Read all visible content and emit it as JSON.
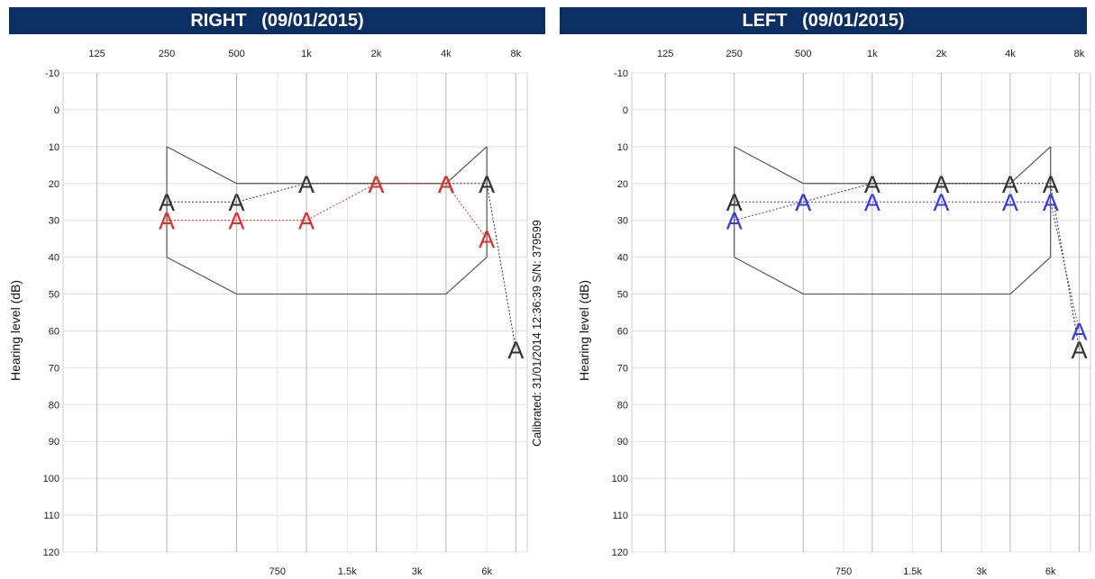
{
  "calibration_note": "Calibrated: 31/01/2014 12:36:39  S/N: 379599",
  "chart_data": [
    {
      "type": "line",
      "side": "right",
      "title": "RIGHT",
      "date": "(09/01/2015)",
      "ylabel": "Hearing level (dB)",
      "x_ticks_top": [
        "125",
        "250",
        "500",
        "1k",
        "2k",
        "4k",
        "8k"
      ],
      "x_ticks_bottom": [
        "750",
        "1.5k",
        "3k",
        "6k"
      ],
      "y_ticks": [
        "-10",
        "0",
        "10",
        "20",
        "30",
        "40",
        "50",
        "60",
        "70",
        "80",
        "90",
        "100",
        "110",
        "120"
      ],
      "ylim": [
        -10,
        120
      ],
      "y_inverted": true,
      "x_scale": "log2",
      "grid": true,
      "norm_region": {
        "upper": [
          [
            250,
            10
          ],
          [
            500,
            20
          ],
          [
            4000,
            20
          ],
          [
            6000,
            10
          ]
        ],
        "lower": [
          [
            250,
            40
          ],
          [
            500,
            50
          ],
          [
            4000,
            50
          ],
          [
            6000,
            40
          ]
        ]
      },
      "series": [
        {
          "marker": "A",
          "color": "#333333",
          "points": [
            [
              250,
              25
            ],
            [
              500,
              25
            ],
            [
              1000,
              20
            ],
            [
              2000,
              20
            ],
            [
              4000,
              20
            ],
            [
              6000,
              20
            ],
            [
              8000,
              65
            ]
          ]
        },
        {
          "marker": "A",
          "color": "#e03030",
          "points": [
            [
              250,
              30
            ],
            [
              500,
              30
            ],
            [
              1000,
              30
            ],
            [
              2000,
              20
            ],
            [
              4000,
              20
            ],
            [
              6000,
              35
            ]
          ]
        }
      ]
    },
    {
      "type": "line",
      "side": "left",
      "title": "LEFT",
      "date": "(09/01/2015)",
      "ylabel": "Hearing level (dB)",
      "x_ticks_top": [
        "125",
        "250",
        "500",
        "1k",
        "2k",
        "4k",
        "8k"
      ],
      "x_ticks_bottom": [
        "750",
        "1.5k",
        "3k",
        "6k"
      ],
      "y_ticks": [
        "-10",
        "0",
        "10",
        "20",
        "30",
        "40",
        "50",
        "60",
        "70",
        "80",
        "90",
        "100",
        "110",
        "120"
      ],
      "ylim": [
        -10,
        120
      ],
      "y_inverted": true,
      "x_scale": "log2",
      "grid": true,
      "norm_region": {
        "upper": [
          [
            250,
            10
          ],
          [
            500,
            20
          ],
          [
            4000,
            20
          ],
          [
            6000,
            10
          ]
        ],
        "lower": [
          [
            250,
            40
          ],
          [
            500,
            50
          ],
          [
            4000,
            50
          ],
          [
            6000,
            40
          ]
        ]
      },
      "series": [
        {
          "marker": "A",
          "color": "#333333",
          "points": [
            [
              250,
              25
            ],
            [
              500,
              25
            ],
            [
              1000,
              20
            ],
            [
              2000,
              20
            ],
            [
              4000,
              20
            ],
            [
              6000,
              20
            ],
            [
              8000,
              65
            ]
          ]
        },
        {
          "marker": "A",
          "color": "#3a3ae0",
          "points": [
            [
              250,
              30
            ],
            [
              500,
              25
            ],
            [
              1000,
              25
            ],
            [
              2000,
              25
            ],
            [
              4000,
              25
            ],
            [
              6000,
              25
            ],
            [
              8000,
              60
            ]
          ]
        }
      ]
    }
  ]
}
